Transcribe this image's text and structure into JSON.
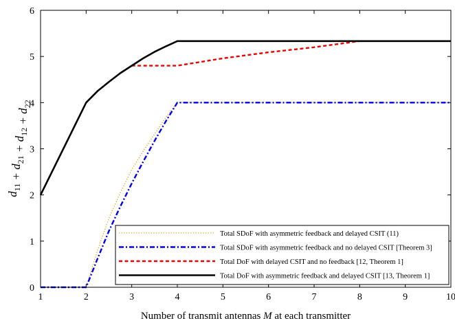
{
  "chart_data": {
    "type": "line",
    "title": "",
    "xlabel_parts": [
      "Number of transmit antennas ",
      "M",
      " at each transmitter"
    ],
    "ylabel_parts": [
      {
        "t": "d",
        "s": "11"
      },
      {
        "t": " + d",
        "s": "21"
      },
      {
        "t": " + d",
        "s": "12"
      },
      {
        "t": " + d",
        "s": "22"
      }
    ],
    "xlim": [
      1,
      10
    ],
    "ylim": [
      0,
      6
    ],
    "xticks": [
      "1",
      "2",
      "3",
      "4",
      "5",
      "6",
      "7",
      "8",
      "9",
      "10"
    ],
    "yticks": [
      "0",
      "1",
      "2",
      "3",
      "4",
      "5",
      "6"
    ],
    "grid": false,
    "legend_position": "lower-right",
    "series": [
      {
        "name": "Total SDoF with asymmetric feedback and delayed CSIT (11)",
        "color": "#d9a400",
        "style": "dotted",
        "x": [
          1,
          2,
          2.25,
          2.5,
          2.75,
          3,
          3.25,
          3.5,
          3.75,
          4,
          5,
          6,
          7,
          8,
          9,
          10
        ],
        "y": [
          0,
          0,
          0.8,
          1.5,
          2.05,
          2.55,
          2.95,
          3.32,
          3.68,
          4.0,
          4.0,
          4.0,
          4.0,
          4.0,
          4.0,
          4.0
        ]
      },
      {
        "name": "Total SDoF with asymmetric feedback and no delayed CSIT [Theorem 3]",
        "color": "#0000ee",
        "style": "dashdot",
        "x": [
          1,
          2,
          2.25,
          2.5,
          2.75,
          3,
          3.25,
          3.5,
          3.75,
          4,
          5,
          6,
          7,
          8,
          9,
          10
        ],
        "y": [
          0,
          0,
          0.62,
          1.22,
          1.75,
          2.25,
          2.72,
          3.17,
          3.6,
          4.0,
          4.0,
          4.0,
          4.0,
          4.0,
          4.0,
          4.0
        ]
      },
      {
        "name": "Total DoF with delayed CSIT and no feedback [12, Theorem 1]",
        "color": "#ee0000",
        "style": "dashed",
        "x": [
          3,
          4,
          5,
          6,
          7,
          8
        ],
        "y": [
          4.8,
          4.8,
          4.96,
          5.09,
          5.2,
          5.333
        ]
      },
      {
        "name": "Total DoF with asymmetric feedback and delayed CSIT [13, Theorem 1]",
        "color": "#000000",
        "style": "solid",
        "x": [
          1,
          2,
          2.25,
          2.5,
          2.75,
          3,
          3.25,
          3.5,
          3.75,
          4,
          5,
          6,
          7,
          8,
          9,
          10
        ],
        "y": [
          2,
          4,
          4.25,
          4.45,
          4.64,
          4.8,
          4.96,
          5.1,
          5.22,
          5.333,
          5.333,
          5.333,
          5.333,
          5.333,
          5.333,
          5.333
        ]
      }
    ]
  }
}
